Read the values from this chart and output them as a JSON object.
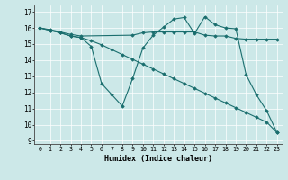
{
  "xlabel": "Humidex (Indice chaleur)",
  "bg_color": "#cce8e8",
  "line_color": "#1a6e6e",
  "xlim": [
    -0.5,
    23.5
  ],
  "ylim": [
    8.8,
    17.4
  ],
  "xticks": [
    0,
    1,
    2,
    3,
    4,
    5,
    6,
    7,
    8,
    9,
    10,
    11,
    12,
    13,
    14,
    15,
    16,
    17,
    18,
    19,
    20,
    21,
    22,
    23
  ],
  "yticks": [
    9,
    10,
    11,
    12,
    13,
    14,
    15,
    16,
    17
  ],
  "line1_x": [
    0,
    1,
    2,
    3,
    4,
    9,
    10,
    11,
    12,
    13,
    14,
    15,
    16,
    17,
    18,
    19,
    20,
    21,
    22,
    23
  ],
  "line1_y": [
    16.0,
    15.9,
    15.75,
    15.6,
    15.5,
    15.55,
    15.7,
    15.75,
    15.75,
    15.75,
    15.75,
    15.75,
    15.55,
    15.5,
    15.5,
    15.35,
    15.3,
    15.3,
    15.3,
    15.3
  ],
  "line2_x": [
    0,
    1,
    2,
    3,
    4,
    5,
    6,
    7,
    8,
    9,
    10,
    11,
    12,
    13,
    14,
    15,
    16,
    17,
    18,
    19,
    20,
    21,
    22,
    23
  ],
  "line2_y": [
    16.0,
    15.85,
    15.7,
    15.5,
    15.4,
    14.85,
    12.55,
    11.85,
    11.15,
    12.85,
    14.75,
    15.55,
    16.05,
    16.55,
    16.65,
    15.65,
    16.7,
    16.2,
    16.0,
    15.95,
    13.1,
    11.85,
    10.85,
    9.5
  ],
  "line3_x": [
    0,
    1,
    2,
    3,
    4,
    5,
    6,
    7,
    8,
    9,
    10,
    11,
    12,
    13,
    14,
    15,
    16,
    17,
    18,
    19,
    20,
    21,
    22,
    23
  ],
  "line3_y": [
    16.0,
    15.85,
    15.7,
    15.5,
    15.4,
    15.2,
    14.95,
    14.65,
    14.35,
    14.05,
    13.75,
    13.45,
    13.15,
    12.85,
    12.55,
    12.25,
    11.95,
    11.65,
    11.35,
    11.05,
    10.75,
    10.45,
    10.15,
    9.5
  ]
}
